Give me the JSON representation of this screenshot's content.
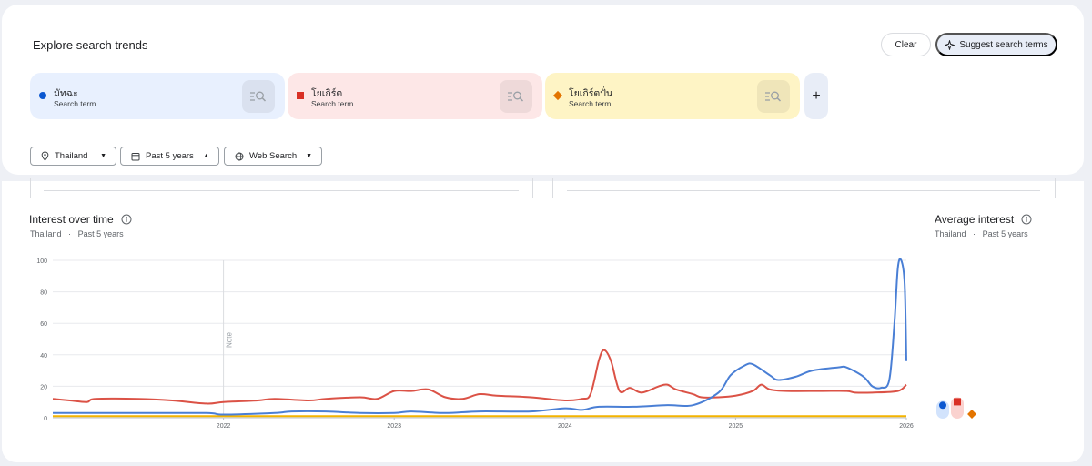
{
  "header": {
    "title": "Explore search trends",
    "clear_label": "Clear",
    "suggest_label": "Suggest search terms"
  },
  "terms": [
    {
      "name": "มัทฉะ",
      "sub": "Search term",
      "color": "#0b57d0",
      "bg": "#e8f0fe",
      "shape": "circle"
    },
    {
      "name": "โยเกิร์ต",
      "sub": "Search term",
      "color": "#d93025",
      "bg": "#fde7e7",
      "shape": "square"
    },
    {
      "name": "โยเกิร์ตปั่น",
      "sub": "Search term",
      "color": "#e37400",
      "bg": "#fef4c5",
      "shape": "diamond"
    }
  ],
  "add_term_icon": "plus-icon",
  "filters": {
    "region": "Thailand",
    "time": "Past 5 years",
    "property": "Web Search"
  },
  "interest_over_time": {
    "title": "Interest over time",
    "region": "Thailand",
    "separator": "·",
    "period": "Past 5 years",
    "note": "Note"
  },
  "average_interest": {
    "title": "Average interest",
    "region": "Thailand",
    "separator": "·",
    "period": "Past 5 years"
  },
  "chart_data": {
    "type": "line",
    "ylim": [
      0,
      100
    ],
    "yticks": [
      0,
      20,
      40,
      60,
      80,
      100
    ],
    "xticks": [
      {
        "label": "2022",
        "x": 2022.0
      },
      {
        "label": "2023",
        "x": 2023.0
      },
      {
        "label": "2024",
        "x": 2024.0
      },
      {
        "label": "2025",
        "x": 2025.0
      },
      {
        "label": "2026",
        "x": 2026.0
      }
    ],
    "xlim": [
      2021.0,
      2026.0
    ],
    "note_x": 2022.0,
    "grid": true,
    "series": [
      {
        "term": "มัทฉะ",
        "color": "#4a7fd5",
        "points": [
          [
            2021.0,
            3
          ],
          [
            2021.5,
            3
          ],
          [
            2021.9,
            3
          ],
          [
            2022.0,
            2
          ],
          [
            2022.3,
            3
          ],
          [
            2022.4,
            4
          ],
          [
            2022.6,
            4
          ],
          [
            2022.8,
            3
          ],
          [
            2023.0,
            3
          ],
          [
            2023.1,
            4
          ],
          [
            2023.3,
            3
          ],
          [
            2023.5,
            4
          ],
          [
            2023.8,
            4
          ],
          [
            2024.0,
            6
          ],
          [
            2024.1,
            5
          ],
          [
            2024.2,
            7
          ],
          [
            2024.4,
            7
          ],
          [
            2024.6,
            8
          ],
          [
            2024.75,
            8
          ],
          [
            2024.9,
            16
          ],
          [
            2024.97,
            27
          ],
          [
            2025.05,
            33
          ],
          [
            2025.1,
            34
          ],
          [
            2025.2,
            27
          ],
          [
            2025.25,
            24
          ],
          [
            2025.35,
            26
          ],
          [
            2025.45,
            30
          ],
          [
            2025.6,
            32
          ],
          [
            2025.65,
            32
          ],
          [
            2025.75,
            26
          ],
          [
            2025.8,
            20
          ],
          [
            2025.85,
            19
          ],
          [
            2025.9,
            24
          ],
          [
            2025.93,
            60
          ],
          [
            2025.95,
            95
          ],
          [
            2025.97,
            100
          ],
          [
            2025.99,
            85
          ],
          [
            2026.0,
            36
          ]
        ]
      },
      {
        "term": "โยเกิร์ต",
        "color": "#db5246",
        "points": [
          [
            2021.0,
            12
          ],
          [
            2021.1,
            11
          ],
          [
            2021.2,
            10
          ],
          [
            2021.25,
            12
          ],
          [
            2021.5,
            12
          ],
          [
            2021.7,
            11
          ],
          [
            2021.9,
            9
          ],
          [
            2022.0,
            10
          ],
          [
            2022.2,
            11
          ],
          [
            2022.3,
            12
          ],
          [
            2022.5,
            11
          ],
          [
            2022.6,
            12
          ],
          [
            2022.8,
            13
          ],
          [
            2022.9,
            12
          ],
          [
            2023.0,
            17
          ],
          [
            2023.1,
            17
          ],
          [
            2023.2,
            18
          ],
          [
            2023.3,
            13
          ],
          [
            2023.4,
            12
          ],
          [
            2023.5,
            15
          ],
          [
            2023.6,
            14
          ],
          [
            2023.8,
            13
          ],
          [
            2024.0,
            11
          ],
          [
            2024.1,
            12
          ],
          [
            2024.15,
            15
          ],
          [
            2024.2,
            37
          ],
          [
            2024.23,
            43
          ],
          [
            2024.27,
            36
          ],
          [
            2024.32,
            17
          ],
          [
            2024.38,
            19
          ],
          [
            2024.45,
            16
          ],
          [
            2024.55,
            20
          ],
          [
            2024.6,
            21
          ],
          [
            2024.65,
            18
          ],
          [
            2024.75,
            15
          ],
          [
            2024.8,
            13
          ],
          [
            2024.9,
            13
          ],
          [
            2025.0,
            14
          ],
          [
            2025.1,
            17
          ],
          [
            2025.15,
            21
          ],
          [
            2025.2,
            18
          ],
          [
            2025.3,
            17
          ],
          [
            2025.5,
            17
          ],
          [
            2025.65,
            17
          ],
          [
            2025.7,
            16
          ],
          [
            2025.8,
            16
          ],
          [
            2025.95,
            17
          ],
          [
            2026.0,
            21
          ]
        ]
      },
      {
        "term": "โยเกิร์ตปั่น",
        "color": "#f4b400",
        "points": [
          [
            2021.0,
            1
          ],
          [
            2021.5,
            1
          ],
          [
            2022.0,
            1
          ],
          [
            2022.5,
            1
          ],
          [
            2023.0,
            1
          ],
          [
            2023.5,
            1
          ],
          [
            2024.0,
            1
          ],
          [
            2024.2,
            1
          ],
          [
            2024.4,
            1
          ],
          [
            2024.6,
            1
          ],
          [
            2024.8,
            1
          ],
          [
            2025.0,
            1
          ],
          [
            2025.3,
            1
          ],
          [
            2025.6,
            1
          ],
          [
            2025.8,
            1
          ],
          [
            2025.95,
            1
          ],
          [
            2026.0,
            1
          ]
        ]
      }
    ],
    "average": [
      {
        "term": "มัทฉะ",
        "value": 9,
        "color": "#0b57d0",
        "bg": "#d2e3fc"
      },
      {
        "term": "โยเกิร์ต",
        "value": 12,
        "color": "#d93025",
        "bg": "#fad2cf"
      },
      {
        "term": "โยเกิร์ตปั่น",
        "value": 1,
        "color": "#e37400",
        "bg": "#ffffff"
      }
    ]
  }
}
